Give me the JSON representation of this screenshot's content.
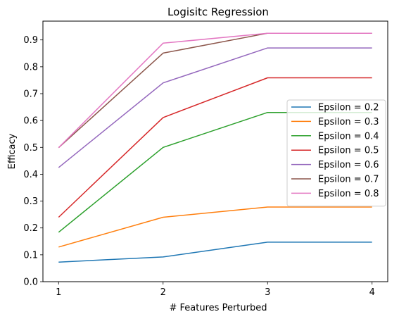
{
  "chart_data": {
    "type": "line",
    "title": "Logisitc Regression",
    "xlabel": "# Features Perturbed",
    "ylabel": "Efficacy",
    "x": [
      1,
      2,
      3,
      4
    ],
    "x_ticks": [
      "1",
      "2",
      "3",
      "4"
    ],
    "xlim": [
      0.85,
      4.15
    ],
    "ylim": [
      0.0,
      0.97
    ],
    "y_ticks": [
      0.0,
      0.1,
      0.2,
      0.3,
      0.4,
      0.5,
      0.6,
      0.7,
      0.8,
      0.9
    ],
    "y_tick_labels": [
      "0.0",
      "0.1",
      "0.2",
      "0.3",
      "0.4",
      "0.5",
      "0.6",
      "0.7",
      "0.8",
      "0.9"
    ],
    "grid": false,
    "legend_position": "center-right",
    "series": [
      {
        "name": "Epsilon = 0.2",
        "color": "#1f77b4",
        "values": [
          0.073,
          0.092,
          0.147,
          0.147
        ]
      },
      {
        "name": "Epsilon = 0.3",
        "color": "#ff7f0e",
        "values": [
          0.129,
          0.24,
          0.278,
          0.278
        ]
      },
      {
        "name": "Epsilon = 0.4",
        "color": "#2ca02c",
        "values": [
          0.184,
          0.5,
          0.63,
          0.63
        ]
      },
      {
        "name": "Epsilon = 0.5",
        "color": "#d62728",
        "values": [
          0.24,
          0.611,
          0.759,
          0.759
        ]
      },
      {
        "name": "Epsilon = 0.6",
        "color": "#9467bd",
        "values": [
          0.425,
          0.74,
          0.87,
          0.87
        ]
      },
      {
        "name": "Epsilon = 0.7",
        "color": "#8c564b",
        "values": [
          0.499,
          0.851,
          0.925,
          0.925
        ]
      },
      {
        "name": "Epsilon = 0.8",
        "color": "#e377c2",
        "values": [
          0.499,
          0.888,
          0.925,
          0.925
        ]
      }
    ]
  }
}
